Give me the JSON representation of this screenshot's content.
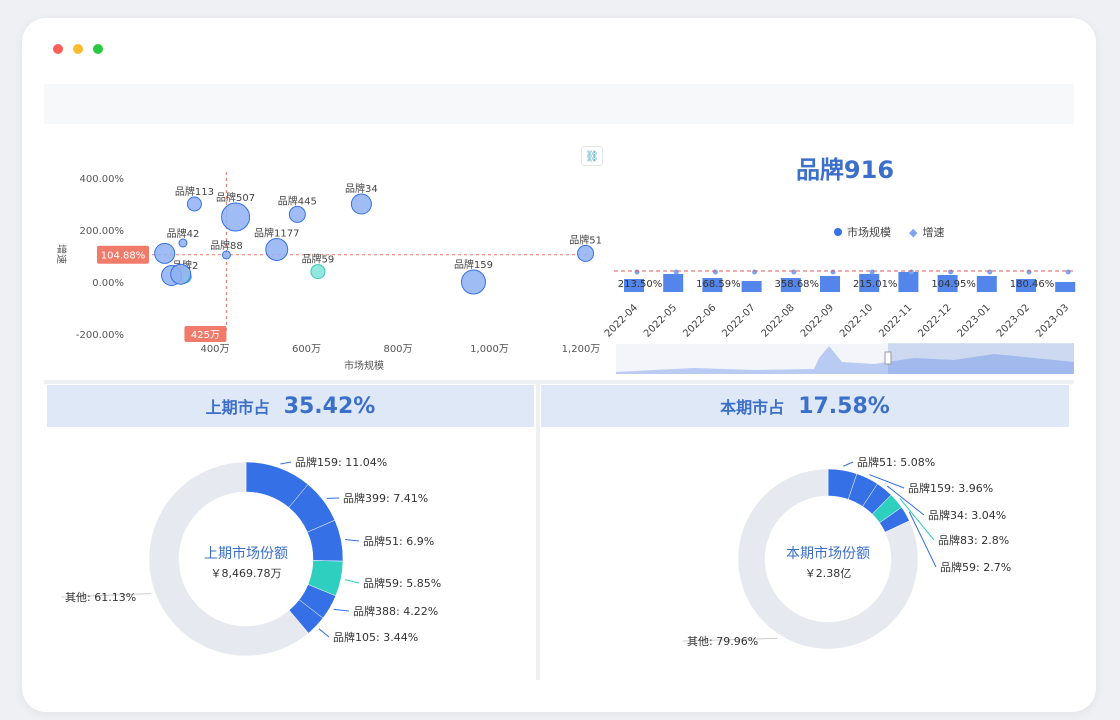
{
  "window_controls": {
    "close": "#ff5f57",
    "minimize": "#febc2e",
    "maximize": "#28c840"
  },
  "scatter": {
    "link_icon": "link-icon",
    "ylabel": "增速",
    "xlabel": "市场规模",
    "y_ticks": [
      "400.00%",
      "200.00%",
      "0.00%",
      "-200.00%"
    ],
    "x_ticks": [
      "400万",
      "600万",
      "800万",
      "1,000万",
      "1,200万"
    ],
    "ref_y_label": "104.88%",
    "ref_x_label": "425万",
    "points": [
      {
        "label": "品牌113",
        "x": 355,
        "y": 300
      },
      {
        "label": "品牌507",
        "x": 445,
        "y": 250
      },
      {
        "label": "品牌445",
        "x": 580,
        "y": 260
      },
      {
        "label": "品牌34",
        "x": 720,
        "y": 300
      },
      {
        "label": "品牌42",
        "x": 330,
        "y": 150
      },
      {
        "label": "品牌88",
        "x": 425,
        "y": 104
      },
      {
        "label": "品牌1177",
        "x": 535,
        "y": 125
      },
      {
        "label": "品牌51",
        "x": 1210,
        "y": 110
      },
      {
        "label": "品牌2",
        "x": 335,
        "y": 20
      },
      {
        "label": "品牌59",
        "x": 625,
        "y": 40
      },
      {
        "label": "品牌159",
        "x": 965,
        "y": 0
      },
      {
        "label": "",
        "x": 290,
        "y": 110
      },
      {
        "label": "",
        "x": 305,
        "y": 25
      },
      {
        "label": "",
        "x": 325,
        "y": 30
      }
    ]
  },
  "trend": {
    "title": "品牌916",
    "legend": [
      "市场规模",
      "增速"
    ],
    "months": [
      "2022-04",
      "2022-05",
      "2022-06",
      "2022-07",
      "2022-08",
      "2022-09",
      "2022-10",
      "2022-11",
      "2022-12",
      "2023-01",
      "2023-02",
      "2023-03"
    ],
    "value_labels": [
      "213.50%",
      "168.59%",
      "358.68%",
      "215.01%",
      "104.95%",
      "180.46%"
    ]
  },
  "left_donut": {
    "kpi_label": "上期市占",
    "kpi_value": "35.42%",
    "center_title": "上期市场份额",
    "center_value": "￥8,469.78万",
    "slices": [
      {
        "label": "品牌159: 11.04%",
        "value": 11.04
      },
      {
        "label": "品牌399: 7.41%",
        "value": 7.41
      },
      {
        "label": "品牌51: 6.9%",
        "value": 6.9
      },
      {
        "label": "品牌59: 5.85%",
        "value": 5.85
      },
      {
        "label": "品牌388: 4.22%",
        "value": 4.22
      },
      {
        "label": "品牌105: 3.44%",
        "value": 3.44
      },
      {
        "label": "其他: 61.13%",
        "value": 61.13
      }
    ]
  },
  "right_donut": {
    "kpi_label": "本期市占",
    "kpi_value": "17.58%",
    "center_title": "本期市场份额",
    "center_value": "￥2.38亿",
    "slices": [
      {
        "label": "品牌51: 5.08%",
        "value": 5.08
      },
      {
        "label": "品牌159: 3.96%",
        "value": 3.96
      },
      {
        "label": "品牌34: 3.04%",
        "value": 3.04
      },
      {
        "label": "品牌83: 2.8%",
        "value": 2.8
      },
      {
        "label": "品牌59: 2.7%",
        "value": 2.7
      },
      {
        "label": "其他: 79.96%",
        "value": 79.96
      }
    ]
  },
  "colors": {
    "brand": "#3570e6",
    "teal": "#2fcfc0",
    "other": "#e6eaf0",
    "accent_red": "#f07b6a",
    "bubble": "#7ea3ef"
  }
}
